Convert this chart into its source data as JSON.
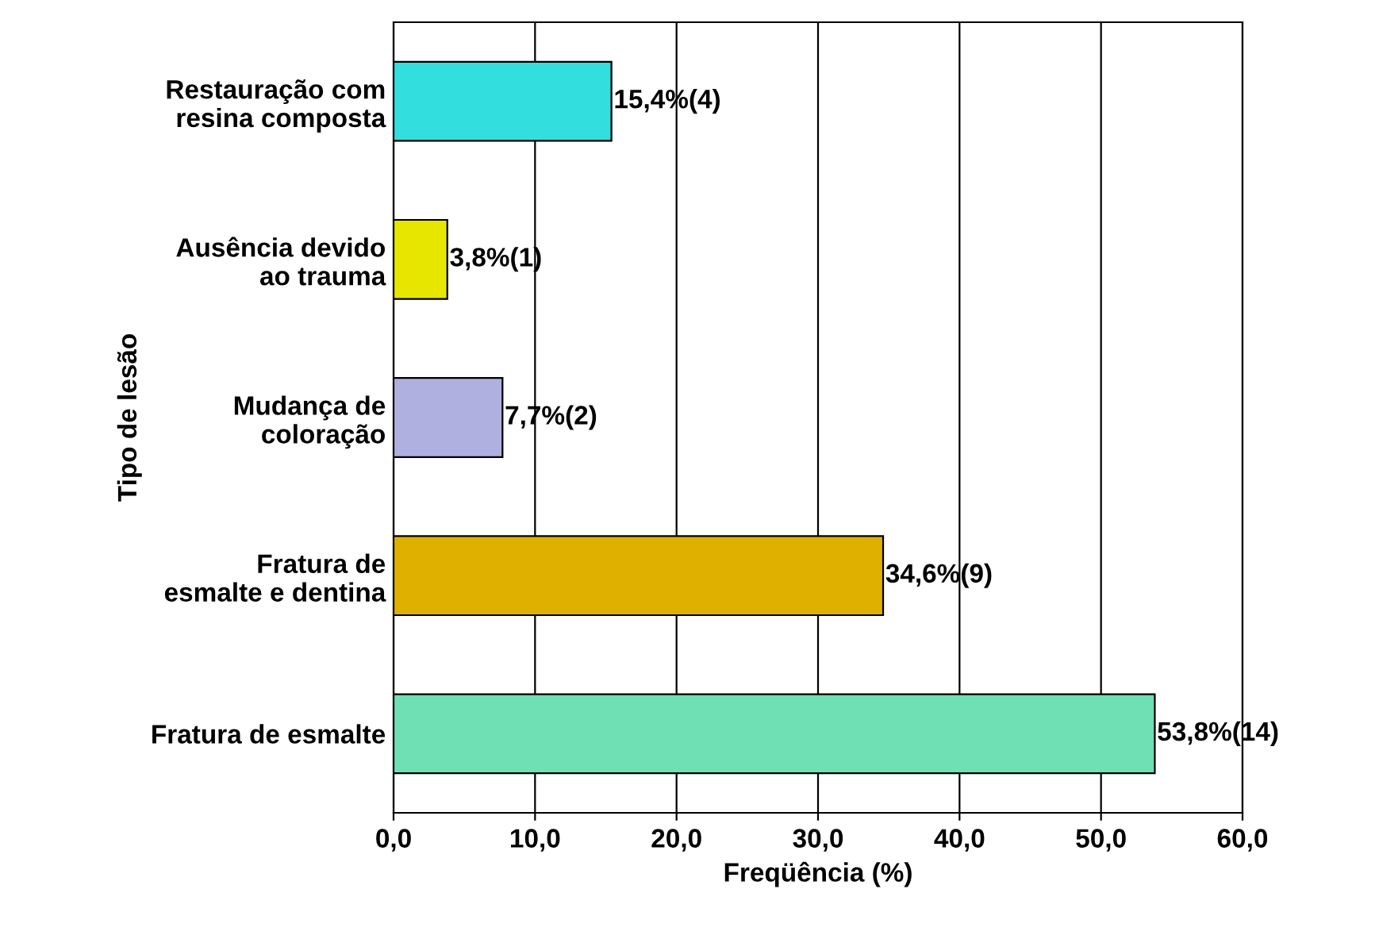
{
  "chart_data": {
    "type": "bar",
    "orientation": "horizontal",
    "categories": [
      "Restauração com\nresina composta",
      "Ausência devido\nao trauma",
      "Mudança de\ncoloração",
      "Fratura de\nesmalte e dentina",
      "Fratura de esmalte"
    ],
    "values": [
      15.4,
      3.8,
      7.7,
      34.6,
      53.8
    ],
    "colors": [
      "#33dede",
      "#e6e600",
      "#b0b0e0",
      "#e0b000",
      "#6ee0b4"
    ],
    "value_labels": [
      "15,4%(4)",
      "3,8%(1)",
      "7,7%(2)",
      "34,6%(9)",
      "53,8%(14)"
    ],
    "xlabel": "Freqüência (%)",
    "ylabel": "Tipo de lesão",
    "xlim": [
      0,
      60
    ],
    "xticks": [
      {
        "value": 0,
        "label": "0,0"
      },
      {
        "value": 10,
        "label": "10,0"
      },
      {
        "value": 20,
        "label": "20,0"
      },
      {
        "value": 30,
        "label": "30,0"
      },
      {
        "value": 40,
        "label": "40,0"
      },
      {
        "value": 50,
        "label": "50,0"
      },
      {
        "value": 60,
        "label": "60,0"
      }
    ],
    "grid": "x"
  }
}
